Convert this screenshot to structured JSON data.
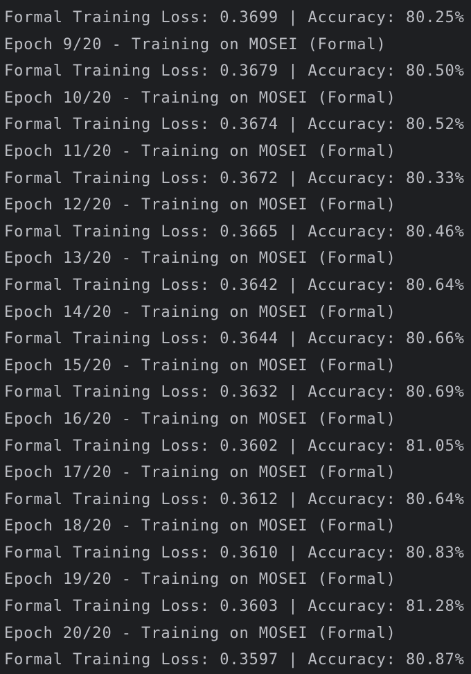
{
  "console": {
    "lines": [
      "Formal Training Loss: 0.3699 | Accuracy: 80.25%",
      "Epoch 9/20 - Training on MOSEI (Formal)",
      "Formal Training Loss: 0.3679 | Accuracy: 80.50%",
      "Epoch 10/20 - Training on MOSEI (Formal)",
      "Formal Training Loss: 0.3674 | Accuracy: 80.52%",
      "Epoch 11/20 - Training on MOSEI (Formal)",
      "Formal Training Loss: 0.3672 | Accuracy: 80.33%",
      "Epoch 12/20 - Training on MOSEI (Formal)",
      "Formal Training Loss: 0.3665 | Accuracy: 80.46%",
      "Epoch 13/20 - Training on MOSEI (Formal)",
      "Formal Training Loss: 0.3642 | Accuracy: 80.64%",
      "Epoch 14/20 - Training on MOSEI (Formal)",
      "Formal Training Loss: 0.3644 | Accuracy: 80.66%",
      "Epoch 15/20 - Training on MOSEI (Formal)",
      "Formal Training Loss: 0.3632 | Accuracy: 80.69%",
      "Epoch 16/20 - Training on MOSEI (Formal)",
      "Formal Training Loss: 0.3602 | Accuracy: 81.05%",
      "Epoch 17/20 - Training on MOSEI (Formal)",
      "Formal Training Loss: 0.3612 | Accuracy: 80.64%",
      "Epoch 18/20 - Training on MOSEI (Formal)",
      "Formal Training Loss: 0.3610 | Accuracy: 80.83%",
      "Epoch 19/20 - Training on MOSEI (Formal)",
      "Formal Training Loss: 0.3603 | Accuracy: 81.28%",
      "Epoch 20/20 - Training on MOSEI (Formal)",
      "Formal Training Loss: 0.3597 | Accuracy: 80.87%"
    ]
  },
  "colors": {
    "background": "#1e1f22",
    "text": "#bcbec4"
  }
}
